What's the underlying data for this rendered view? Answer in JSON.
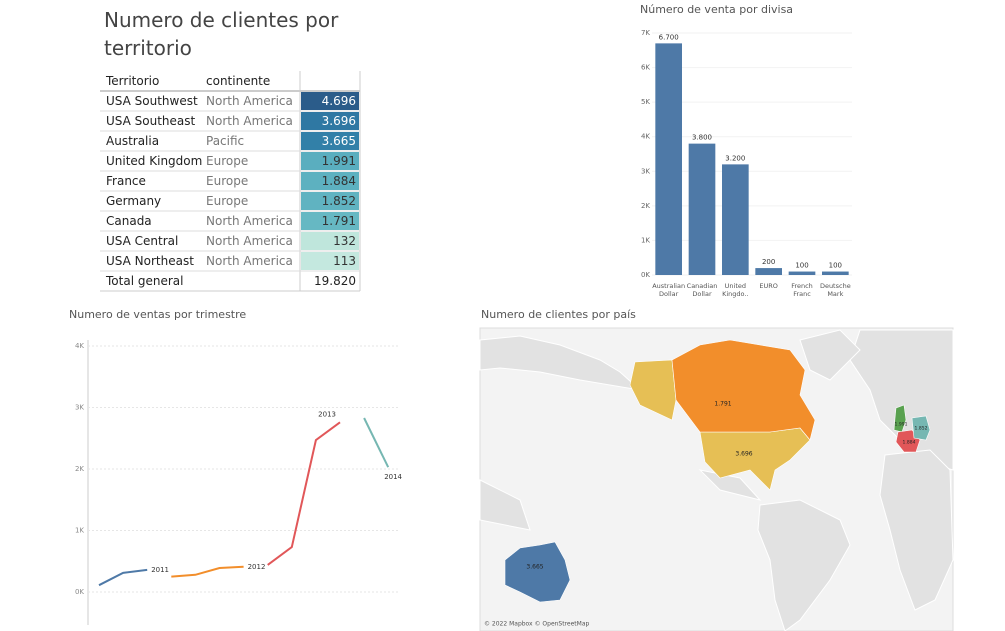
{
  "table": {
    "title": "Numero de clientes por territorio",
    "headers": [
      "Territorio",
      "continente"
    ],
    "rows": [
      [
        "USA Southwest",
        "North America",
        "4.696"
      ],
      [
        "USA Southeast",
        "North America",
        "3.696"
      ],
      [
        "Australia",
        "Pacific",
        "3.665"
      ],
      [
        "United Kingdom",
        "Europe",
        "1.991"
      ],
      [
        "France",
        "Europe",
        "1.884"
      ],
      [
        "Germany",
        "Europe",
        "1.852"
      ],
      [
        "Canada",
        "North America",
        "1.791"
      ],
      [
        "USA Central",
        "North America",
        "132"
      ],
      [
        "USA Northeast",
        "North America",
        "113"
      ]
    ],
    "cell_colors": [
      "#2b5c8a",
      "#2f78a3",
      "#3280a8",
      "#5aaebf",
      "#5db1c0",
      "#60b3c1",
      "#66b8c3",
      "#bfe6dc",
      "#c4e8df"
    ],
    "total": [
      "Total general",
      "19.820"
    ]
  },
  "chart_data": [
    {
      "type": "bar",
      "title": "Número de venta por divisa",
      "categories": [
        "Australian Dollar",
        "Canadian Dollar",
        "United Kingdo..",
        "EURO",
        "French Franc",
        "Deutsche Mark"
      ],
      "values": [
        6700,
        3800,
        3200,
        200,
        100,
        100
      ],
      "value_labels": [
        "6.700",
        "3.800",
        "3.200",
        "200",
        "100",
        "100"
      ],
      "color": "#4e79a7",
      "ylim": [
        0,
        7000
      ],
      "yticks": [
        {
          "value": 0,
          "label": "0K"
        },
        {
          "value": 1000,
          "label": "1K"
        },
        {
          "value": 2000,
          "label": "2K"
        },
        {
          "value": 3000,
          "label": "3K"
        },
        {
          "value": 4000,
          "label": "4K"
        },
        {
          "value": 5000,
          "label": "5K"
        },
        {
          "value": 6000,
          "label": "6K"
        },
        {
          "value": 7000,
          "label": "7K"
        }
      ]
    },
    {
      "type": "line",
      "title": "Numero de ventas por trimestre",
      "categories": [
        null,
        null,
        null,
        null,
        null,
        null,
        null,
        null,
        null,
        null,
        null,
        null,
        null
      ],
      "series": [
        {
          "name": "2011",
          "color": "#4e79a7",
          "values": [
            110,
            310,
            360,
            null,
            null,
            null,
            null,
            null,
            null,
            null,
            null,
            null,
            null
          ]
        },
        {
          "name": "2012",
          "color": "#f28e2b",
          "values": [
            null,
            null,
            null,
            250,
            280,
            390,
            410,
            null,
            null,
            null,
            null,
            null,
            null
          ]
        },
        {
          "name": "2013",
          "color": "#e15759",
          "values": [
            null,
            null,
            null,
            null,
            null,
            null,
            null,
            440,
            730,
            2470,
            2760,
            null,
            null
          ]
        },
        {
          "name": "2014",
          "color": "#76b7b2",
          "values": [
            null,
            null,
            null,
            null,
            null,
            null,
            null,
            null,
            null,
            null,
            null,
            2830,
            2030
          ]
        }
      ],
      "ylim": [
        0,
        4000
      ],
      "yticks": [
        {
          "value": 0,
          "label": "0K"
        },
        {
          "value": 1000,
          "label": "1K"
        },
        {
          "value": 2000,
          "label": "2K"
        },
        {
          "value": 3000,
          "label": "3K"
        },
        {
          "value": 4000,
          "label": "4K"
        }
      ],
      "grid": true
    }
  ],
  "map": {
    "title": "Numero de clientes por país",
    "regions": [
      {
        "label": "1.791",
        "color": "#f28e2b"
      },
      {
        "label": "3.696",
        "color": "#e6bf55"
      },
      {
        "label": "3.665",
        "color": "#4e79a7"
      },
      {
        "label": "1.991",
        "color": "#59a14f"
      },
      {
        "label": "1.884",
        "color": "#e15759"
      },
      {
        "label": "1.852",
        "color": "#76b7b2"
      }
    ],
    "attribution": "© 2022 Mapbox © OpenStreetMap"
  }
}
